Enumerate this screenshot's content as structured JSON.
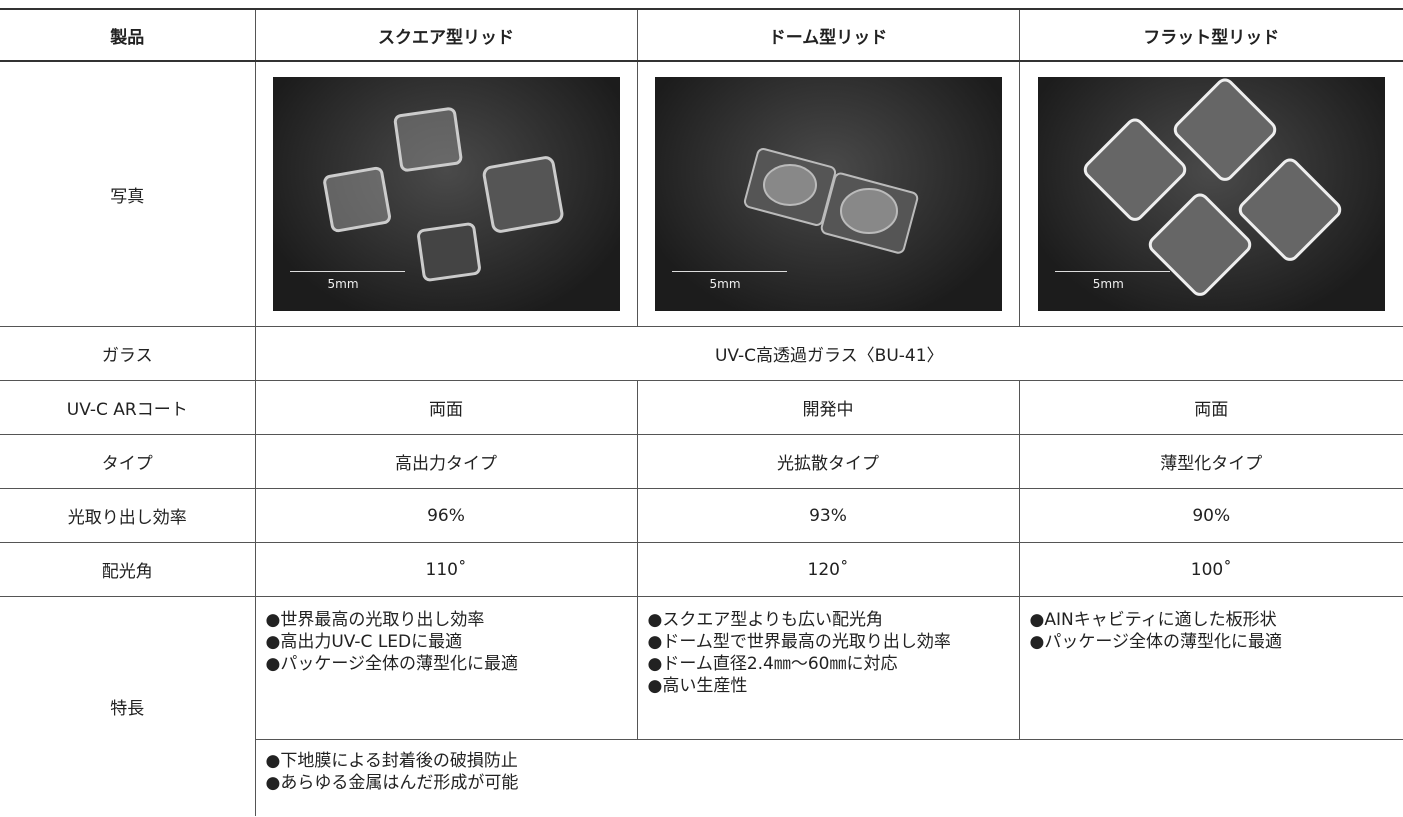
{
  "table": {
    "header": [
      "製品",
      "スクエア型リッド",
      "ドーム型リッド",
      "フラット型リッド"
    ],
    "photo": {
      "label": "写真",
      "scale_labels": [
        "5mm",
        "5mm",
        "5mm"
      ]
    },
    "glass": {
      "label": "ガラス",
      "value": "UV-C高透過ガラス〈BU-41〉"
    },
    "rows": [
      [
        "UV-C ARコート",
        "両面",
        "開発中",
        "両面"
      ],
      [
        "タイプ",
        "高出力タイプ",
        "光拡散タイプ",
        "薄型化タイプ"
      ],
      [
        "光取り出し効率",
        "96%",
        "93%",
        "90%"
      ],
      [
        "配光角",
        "110˚",
        "120˚",
        "100˚"
      ]
    ],
    "features": {
      "label": "特長",
      "items": [
        [
          "●世界最高の光取り出し効率",
          "●高出力UV-C LEDに最適",
          "●パッケージ全体の薄型化に最適"
        ],
        [
          "●スクエア型よりも広い配光角",
          "●ドーム型で世界最高の光取り出し効率",
          "●ドーム直径2.4㎜～60㎜に対応",
          "●高い生産性"
        ],
        [
          "●AINキャビティに適した板形状",
          "●パッケージ全体の薄型化に最適"
        ]
      ],
      "common": [
        "●下地膜による封着後の破損防止",
        "●あらゆる金属はんだ形成が可能"
      ]
    }
  }
}
